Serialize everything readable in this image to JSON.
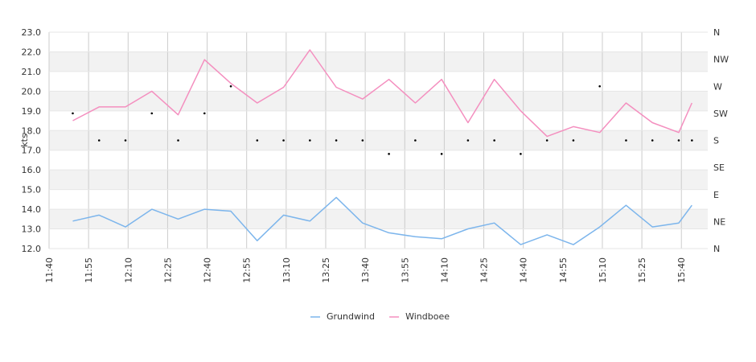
{
  "chart_data": {
    "type": "line",
    "ylabel": "kts",
    "ylim": [
      12,
      23
    ],
    "y_ticks": [
      "12.0",
      "13.0",
      "14.0",
      "15.0",
      "16.0",
      "17.0",
      "18.0",
      "19.0",
      "20.0",
      "21.0",
      "22.0",
      "23.0"
    ],
    "y2_ticks": [
      "N",
      "NE",
      "E",
      "SE",
      "S",
      "SW",
      "W",
      "NW",
      "N"
    ],
    "x_ticks": [
      "11:40",
      "11:55",
      "12:10",
      "12:25",
      "12:40",
      "12:55",
      "13:10",
      "13:25",
      "13:40",
      "13:55",
      "14:10",
      "14:25",
      "14:40",
      "14:55",
      "15:10",
      "15:25",
      "15:40"
    ],
    "x": [
      "11:49",
      "11:59",
      "12:09",
      "12:19",
      "12:29",
      "12:39",
      "12:49",
      "12:59",
      "13:09",
      "13:19",
      "13:29",
      "13:39",
      "13:49",
      "13:59",
      "14:09",
      "14:19",
      "14:29",
      "14:39",
      "14:49",
      "14:59",
      "15:09",
      "15:19",
      "15:29",
      "15:39",
      "15:44"
    ],
    "series": [
      {
        "name": "Grundwind",
        "color": "#7cb5ec",
        "values": [
          13.4,
          13.7,
          13.1,
          14.0,
          13.5,
          14.0,
          13.9,
          12.4,
          13.7,
          13.4,
          14.6,
          13.3,
          12.8,
          12.6,
          12.5,
          13.0,
          13.3,
          12.2,
          12.7,
          12.2,
          13.1,
          14.2,
          13.1,
          13.3,
          14.2
        ]
      },
      {
        "name": "Windboee",
        "color": "#f48fbf",
        "values": [
          18.5,
          19.2,
          19.2,
          20.0,
          18.8,
          21.6,
          20.4,
          19.4,
          20.2,
          22.1,
          20.2,
          19.6,
          20.6,
          19.4,
          20.6,
          18.4,
          20.6,
          19.0,
          17.7,
          18.2,
          17.9,
          19.4,
          18.4,
          17.9,
          19.4
        ]
      }
    ],
    "direction": {
      "values": [
        "SW",
        "S",
        "S",
        "SW",
        "S",
        "SW",
        "W",
        "S",
        "S",
        "S",
        "S",
        "S",
        "SSE",
        "S",
        "SSE",
        "S",
        "S",
        "SSE",
        "S",
        "S",
        "W",
        "S",
        "S",
        "S",
        "S"
      ],
      "ranks": [
        5,
        4,
        4,
        5,
        4,
        5,
        6,
        4,
        4,
        4,
        4,
        4,
        3.5,
        4,
        3.5,
        4,
        4,
        3.5,
        4,
        4,
        6,
        4,
        4,
        4,
        4
      ]
    },
    "grid": true,
    "legend_position": "bottom-center"
  }
}
